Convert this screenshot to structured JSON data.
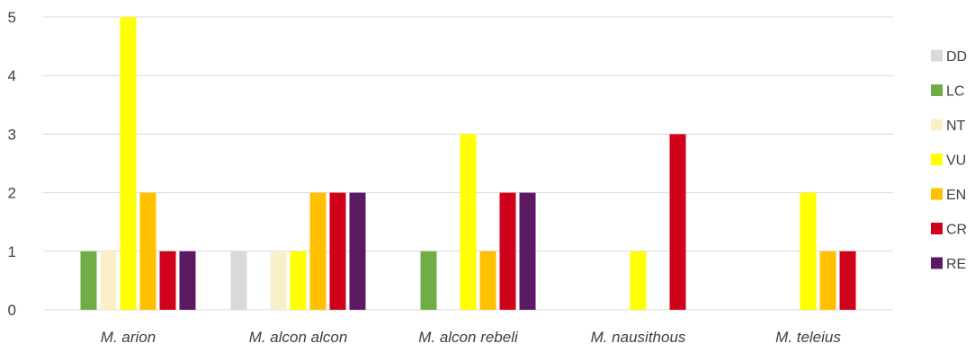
{
  "chart_data": {
    "type": "bar",
    "categories": [
      "M. arion",
      "M. alcon alcon",
      "M. alcon rebeli",
      "M. nausithous",
      "M. teleius"
    ],
    "series": [
      {
        "name": "DD",
        "color": "#d9d9d9",
        "values": [
          0,
          1,
          0,
          0,
          0
        ]
      },
      {
        "name": "LC",
        "color": "#70ad47",
        "values": [
          1,
          0,
          1,
          0,
          0
        ]
      },
      {
        "name": "NT",
        "color": "#fbefc8",
        "values": [
          1,
          1,
          0,
          0,
          0
        ]
      },
      {
        "name": "VU",
        "color": "#ffff00",
        "values": [
          5,
          1,
          3,
          1,
          2
        ]
      },
      {
        "name": "EN",
        "color": "#ffc000",
        "values": [
          2,
          2,
          1,
          0,
          1
        ]
      },
      {
        "name": "CR",
        "color": "#d0021b",
        "values": [
          1,
          2,
          2,
          3,
          1
        ]
      },
      {
        "name": "RE",
        "color": "#5b1a63",
        "values": [
          1,
          2,
          2,
          0,
          0
        ]
      }
    ],
    "ylim": [
      0,
      5
    ],
    "yticks": [
      "0",
      "1",
      "2",
      "3",
      "4",
      "5"
    ],
    "grid": true,
    "legend_position": "right",
    "gridline_color": "#d9d9d9"
  }
}
